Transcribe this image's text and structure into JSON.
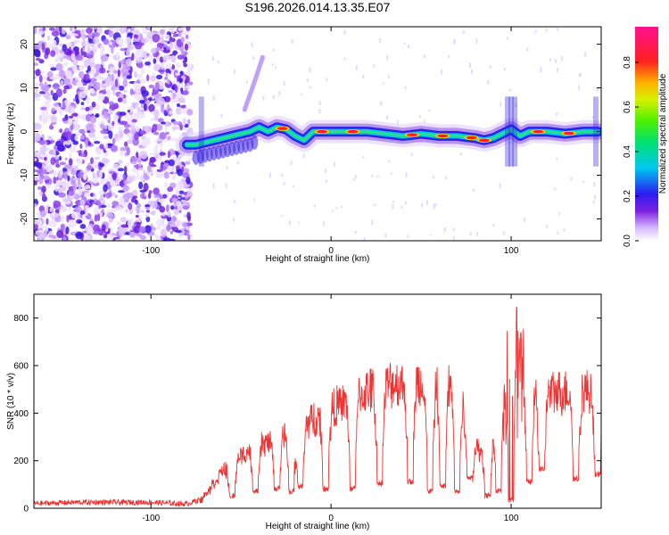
{
  "chart_data": [
    {
      "type": "heatmap",
      "title": "S196.2026.014.13.35.E07",
      "xlabel": "Height of straight line (km)",
      "ylabel": "Frequency (Hz)",
      "xlim": [
        -165,
        150
      ],
      "ylim": [
        -25,
        24
      ],
      "xticks": [
        -100,
        0,
        100
      ],
      "yticks": [
        -20,
        -10,
        0,
        10,
        20
      ],
      "noise_region": [
        -165,
        -78
      ],
      "ridge": {
        "x": [
          -80,
          -75,
          -70,
          -65,
          -60,
          -55,
          -50,
          -45,
          -40,
          -35,
          -30,
          -25,
          -20,
          -15,
          -10,
          -5,
          0,
          10,
          20,
          30,
          40,
          50,
          60,
          70,
          80,
          85,
          90,
          95,
          100,
          105,
          110,
          120,
          130,
          140,
          148
        ],
        "y": [
          -3,
          -3,
          -2.5,
          -2,
          -1.5,
          -1,
          -0.5,
          0,
          1,
          0,
          1,
          0.5,
          -1,
          -2,
          0,
          0,
          0,
          0,
          0,
          -0.5,
          -1,
          -0.5,
          -1,
          -1,
          -1.5,
          -2,
          -1.5,
          -0.5,
          0.5,
          -1,
          0,
          0,
          -0.5,
          0,
          0
        ]
      },
      "hot_spots_x": [
        -27,
        -5,
        12,
        45,
        62,
        78,
        85,
        115,
        132
      ],
      "colorbar": {
        "label": "Normalized spectral amplitude",
        "ticks": [
          "0.0",
          "0.2",
          "0.4",
          "0.6",
          "0.8"
        ],
        "range": [
          0,
          0.96
        ]
      }
    },
    {
      "type": "line",
      "title": "",
      "xlabel": "Height of straight line (km)",
      "ylabel": "SNR (10 * v/v)",
      "xlim": [
        -165,
        150
      ],
      "ylim": [
        0,
        900
      ],
      "xticks": [
        -100,
        0,
        100
      ],
      "yticks": [
        0,
        200,
        400,
        600,
        800
      ],
      "series": [
        {
          "name": "SNR",
          "color": "#ee3333",
          "envelope": {
            "x": [
              -165,
              -140,
              -100,
              -80,
              -72,
              -65,
              -60,
              -55,
              -50,
              -40,
              -30,
              -20,
              -10,
              0,
              10,
              20,
              30,
              40,
              50,
              60,
              70,
              80,
              85,
              90,
              95,
              100,
              102,
              104,
              108,
              115,
              130,
              150
            ],
            "y": [
              20,
              25,
              25,
              18,
              40,
              120,
              180,
              200,
              250,
              300,
              320,
              380,
              420,
              470,
              500,
              550,
              580,
              590,
              590,
              580,
              560,
              300,
              250,
              350,
              500,
              650,
              850,
              800,
              560,
              540,
              550,
              550
            ]
          },
          "dips": [
            {
              "x": -55,
              "v": 40
            },
            {
              "x": -42,
              "v": 60
            },
            {
              "x": -30,
              "v": 70
            },
            {
              "x": -22,
              "v": 60
            },
            {
              "x": -17,
              "v": 80
            },
            {
              "x": -3,
              "v": 70
            },
            {
              "x": 12,
              "v": 70
            },
            {
              "x": 27,
              "v": 90
            },
            {
              "x": 44,
              "v": 100
            },
            {
              "x": 55,
              "v": 60
            },
            {
              "x": 62,
              "v": 80
            },
            {
              "x": 70,
              "v": 60
            },
            {
              "x": 77,
              "v": 120
            },
            {
              "x": 87,
              "v": 40
            },
            {
              "x": 93,
              "v": 60
            },
            {
              "x": 100,
              "v": 20
            },
            {
              "x": 110,
              "v": 100
            },
            {
              "x": 117,
              "v": 150
            },
            {
              "x": 136,
              "v": 110
            },
            {
              "x": 148,
              "v": 130
            }
          ]
        }
      ]
    }
  ]
}
